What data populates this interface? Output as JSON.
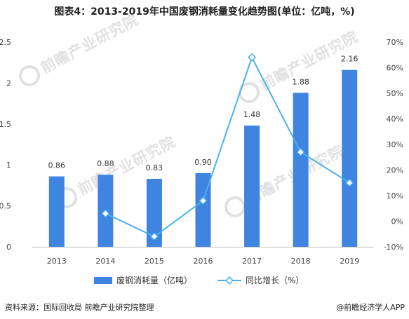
{
  "header": {
    "title": "图表4：2013-2019年中国废钢消耗量变化趋势图(单位：亿吨，%)"
  },
  "watermark": {
    "text": "前瞻产业研究院",
    "color": "#c9c9c9"
  },
  "chart_data": {
    "type": "bar",
    "categories": [
      "2013",
      "2014",
      "2015",
      "2016",
      "2017",
      "2018",
      "2019"
    ],
    "series": [
      {
        "name": "废钢消耗量（亿吨）",
        "type": "bar",
        "axis": "left",
        "color": "#3f84e0",
        "values": [
          0.86,
          0.88,
          0.83,
          0.9,
          1.48,
          1.88,
          2.16
        ],
        "labels": [
          "0.86",
          "0.88",
          "0.83",
          "0.90",
          "1.48",
          "1.88",
          "2.16"
        ]
      },
      {
        "name": "同比增长（%）",
        "type": "line",
        "axis": "right",
        "color": "#4ab1ec",
        "values": [
          null,
          3,
          -6,
          8,
          64,
          27,
          15
        ]
      }
    ],
    "left_axis": {
      "range": [
        0,
        2.5
      ],
      "ticks": [
        0,
        0.5,
        1,
        1.5,
        2,
        2.5
      ],
      "tick_labels": [
        "0",
        "0.5",
        "1",
        "1.5",
        "2",
        "2.5"
      ]
    },
    "right_axis": {
      "range": [
        -10,
        70
      ],
      "ticks": [
        -10,
        0,
        10,
        20,
        30,
        40,
        50,
        60,
        70
      ],
      "tick_labels": [
        "-10%",
        "0%",
        "10%",
        "20%",
        "30%",
        "40%",
        "50%",
        "60%",
        "70%"
      ]
    },
    "grid": false,
    "legend_position": "bottom"
  },
  "footer": {
    "source": "资料来源：国际回收局 前瞻产业研究院整理",
    "brand": "@前瞻经济学人APP"
  }
}
